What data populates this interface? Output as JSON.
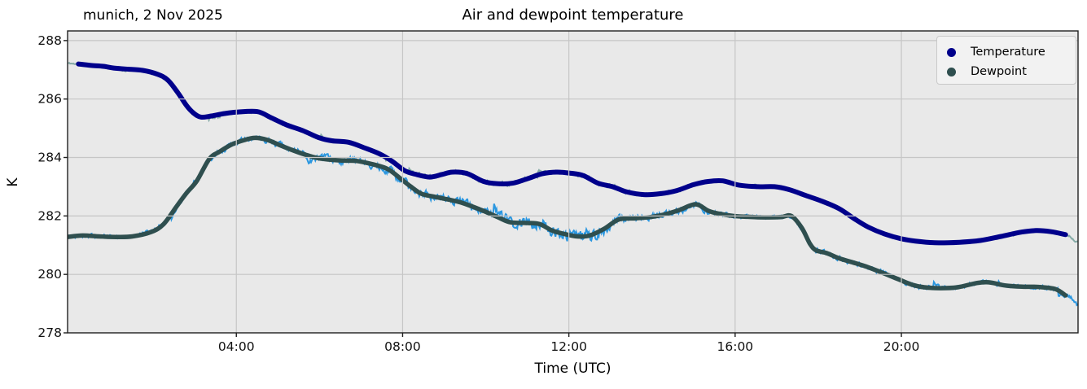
{
  "chart_data": {
    "type": "line",
    "title": "Air and dewpoint temperature",
    "left_title": "munich, 2 Nov 2025",
    "xlabel": "Time (UTC)",
    "ylabel": "K",
    "grid": true,
    "xlim_hours": [
      -0.06,
      24.25
    ],
    "ylim": [
      278,
      288.33
    ],
    "x_ticks": [
      {
        "h": 4,
        "label": "04:00"
      },
      {
        "h": 8,
        "label": "08:00"
      },
      {
        "h": 12,
        "label": "12:00"
      },
      {
        "h": 16,
        "label": "16:00"
      },
      {
        "h": 20,
        "label": "20:00"
      }
    ],
    "y_ticks": [
      {
        "v": 278,
        "label": "278"
      },
      {
        "v": 280,
        "label": "280"
      },
      {
        "v": 282,
        "label": "282"
      },
      {
        "v": 284,
        "label": "284"
      },
      {
        "v": 286,
        "label": "286"
      },
      {
        "v": 288,
        "label": "288"
      }
    ],
    "colors": {
      "plot_bg": "#e9e9e9",
      "grid": "#c6c6c6",
      "spine": "#1f1f1f",
      "tick_label": "#111111",
      "temperature": "#00008b",
      "dewpoint": "#2f4f4f",
      "temperature_raw": "#85aaa6",
      "dewpoint_raw": "#2b97e0",
      "legend_bg": "#f2f2f2",
      "legend_border": "#c9c9c9"
    },
    "legend": {
      "position": "upper right",
      "entries": [
        {
          "name": "temperature",
          "label": "Temperature",
          "color": "#00008b"
        },
        {
          "name": "dewpoint",
          "label": "Dewpoint",
          "color": "#2f4f4f"
        }
      ]
    },
    "series": [
      {
        "name": "Temperature",
        "color": "#00008b",
        "width": 6,
        "draw_range": [
          0.2,
          24.0
        ],
        "points": [
          [
            -0.06,
            287.22
          ],
          [
            0.2,
            287.2
          ],
          [
            0.5,
            287.15
          ],
          [
            0.8,
            287.12
          ],
          [
            1.05,
            287.06
          ],
          [
            1.4,
            287.02
          ],
          [
            1.75,
            286.98
          ],
          [
            2.1,
            286.85
          ],
          [
            2.35,
            286.65
          ],
          [
            2.6,
            286.2
          ],
          [
            2.8,
            285.78
          ],
          [
            2.97,
            285.52
          ],
          [
            3.15,
            285.38
          ],
          [
            3.4,
            285.42
          ],
          [
            3.7,
            285.5
          ],
          [
            4.0,
            285.55
          ],
          [
            4.5,
            285.57
          ],
          [
            4.85,
            285.35
          ],
          [
            5.2,
            285.12
          ],
          [
            5.6,
            284.92
          ],
          [
            6.0,
            284.67
          ],
          [
            6.3,
            284.57
          ],
          [
            6.7,
            284.52
          ],
          [
            7.1,
            284.32
          ],
          [
            7.45,
            284.12
          ],
          [
            7.75,
            283.87
          ],
          [
            8.05,
            283.55
          ],
          [
            8.3,
            283.43
          ],
          [
            8.65,
            283.33
          ],
          [
            8.95,
            283.42
          ],
          [
            9.2,
            283.5
          ],
          [
            9.55,
            283.45
          ],
          [
            9.95,
            283.18
          ],
          [
            10.3,
            283.1
          ],
          [
            10.65,
            283.12
          ],
          [
            11.0,
            283.27
          ],
          [
            11.35,
            283.44
          ],
          [
            11.7,
            283.5
          ],
          [
            12.05,
            283.46
          ],
          [
            12.35,
            283.38
          ],
          [
            12.7,
            283.12
          ],
          [
            13.05,
            283.0
          ],
          [
            13.4,
            282.82
          ],
          [
            13.8,
            282.73
          ],
          [
            14.2,
            282.76
          ],
          [
            14.6,
            282.87
          ],
          [
            15.0,
            283.07
          ],
          [
            15.35,
            283.18
          ],
          [
            15.7,
            283.2
          ],
          [
            16.1,
            283.05
          ],
          [
            16.55,
            283.0
          ],
          [
            16.95,
            283.0
          ],
          [
            17.3,
            282.9
          ],
          [
            17.7,
            282.7
          ],
          [
            18.1,
            282.5
          ],
          [
            18.5,
            282.25
          ],
          [
            18.85,
            281.92
          ],
          [
            19.2,
            281.62
          ],
          [
            19.6,
            281.38
          ],
          [
            20.0,
            281.22
          ],
          [
            20.45,
            281.12
          ],
          [
            20.9,
            281.08
          ],
          [
            21.4,
            281.1
          ],
          [
            21.9,
            281.16
          ],
          [
            22.4,
            281.3
          ],
          [
            22.9,
            281.45
          ],
          [
            23.25,
            281.5
          ],
          [
            23.6,
            281.46
          ],
          [
            23.95,
            281.36
          ],
          [
            24.25,
            281.12
          ]
        ],
        "raw": {
          "color": "#85aaa6",
          "width": 2,
          "seed": 11,
          "envelope": [
            [
              -0.06,
              0.05
            ],
            [
              2,
              0.06
            ],
            [
              3,
              0.1
            ],
            [
              6,
              0.06
            ],
            [
              8,
              0.08
            ],
            [
              9,
              0.12
            ],
            [
              10,
              0.12
            ],
            [
              11,
              0.1
            ],
            [
              12,
              0.1
            ],
            [
              13,
              0.12
            ],
            [
              14,
              0.08
            ],
            [
              16,
              0.06
            ],
            [
              18,
              0.05
            ],
            [
              20,
              0.04
            ],
            [
              23,
              0.05
            ],
            [
              24.25,
              0.06
            ]
          ]
        }
      },
      {
        "name": "Dewpoint",
        "color": "#2f4f4f",
        "width": 5.5,
        "draw_range": [
          -0.06,
          24.0
        ],
        "points": [
          [
            -0.06,
            281.28
          ],
          [
            0.3,
            281.33
          ],
          [
            0.7,
            281.3
          ],
          [
            1.1,
            281.28
          ],
          [
            1.5,
            281.3
          ],
          [
            1.95,
            281.45
          ],
          [
            2.25,
            281.72
          ],
          [
            2.55,
            282.3
          ],
          [
            2.8,
            282.78
          ],
          [
            3.05,
            283.2
          ],
          [
            3.35,
            283.95
          ],
          [
            3.6,
            284.2
          ],
          [
            3.9,
            284.45
          ],
          [
            4.2,
            284.6
          ],
          [
            4.45,
            284.67
          ],
          [
            4.75,
            284.6
          ],
          [
            5.05,
            284.42
          ],
          [
            5.35,
            284.25
          ],
          [
            5.65,
            284.1
          ],
          [
            6.0,
            283.97
          ],
          [
            6.5,
            283.9
          ],
          [
            6.9,
            283.88
          ],
          [
            7.3,
            283.76
          ],
          [
            7.65,
            283.6
          ],
          [
            7.95,
            283.28
          ],
          [
            8.2,
            283.0
          ],
          [
            8.45,
            282.76
          ],
          [
            8.75,
            282.66
          ],
          [
            9.1,
            282.56
          ],
          [
            9.4,
            282.46
          ],
          [
            9.9,
            282.2
          ],
          [
            10.3,
            281.95
          ],
          [
            10.6,
            281.78
          ],
          [
            11.0,
            281.76
          ],
          [
            11.3,
            281.72
          ],
          [
            11.6,
            281.5
          ],
          [
            11.9,
            281.38
          ],
          [
            12.2,
            281.3
          ],
          [
            12.5,
            281.33
          ],
          [
            12.85,
            281.56
          ],
          [
            13.2,
            281.88
          ],
          [
            13.6,
            281.92
          ],
          [
            13.95,
            281.96
          ],
          [
            14.3,
            282.05
          ],
          [
            14.65,
            282.2
          ],
          [
            15.05,
            282.4
          ],
          [
            15.35,
            282.18
          ],
          [
            15.6,
            282.08
          ],
          [
            15.95,
            282.0
          ],
          [
            16.3,
            281.97
          ],
          [
            16.7,
            281.95
          ],
          [
            17.1,
            281.96
          ],
          [
            17.35,
            282.0
          ],
          [
            17.6,
            281.6
          ],
          [
            17.8,
            281.05
          ],
          [
            17.95,
            280.82
          ],
          [
            18.2,
            280.73
          ],
          [
            18.5,
            280.55
          ],
          [
            18.9,
            280.38
          ],
          [
            19.15,
            280.27
          ],
          [
            19.5,
            280.08
          ],
          [
            19.9,
            279.85
          ],
          [
            20.25,
            279.65
          ],
          [
            20.55,
            279.56
          ],
          [
            20.95,
            279.53
          ],
          [
            21.35,
            279.56
          ],
          [
            21.8,
            279.7
          ],
          [
            22.1,
            279.73
          ],
          [
            22.5,
            279.62
          ],
          [
            22.9,
            279.58
          ],
          [
            23.3,
            279.57
          ],
          [
            23.7,
            279.5
          ],
          [
            23.95,
            279.28
          ],
          [
            24.28,
            278.98
          ]
        ],
        "raw": {
          "color": "#2b97e0",
          "width": 2,
          "seed": 42,
          "envelope": [
            [
              -0.06,
              0.1
            ],
            [
              2,
              0.12
            ],
            [
              5,
              0.15
            ],
            [
              6,
              0.2
            ],
            [
              8,
              0.22
            ],
            [
              9,
              0.25
            ],
            [
              10,
              0.3
            ],
            [
              11,
              0.35
            ],
            [
              11.8,
              0.45
            ],
            [
              12.4,
              0.4
            ],
            [
              13,
              0.25
            ],
            [
              14,
              0.2
            ],
            [
              15,
              0.22
            ],
            [
              16,
              0.12
            ],
            [
              17,
              0.08
            ],
            [
              17.6,
              0.15
            ],
            [
              18.5,
              0.12
            ],
            [
              20,
              0.12
            ],
            [
              22,
              0.1
            ],
            [
              24,
              0.12
            ],
            [
              24.28,
              0.15
            ]
          ]
        }
      }
    ]
  }
}
